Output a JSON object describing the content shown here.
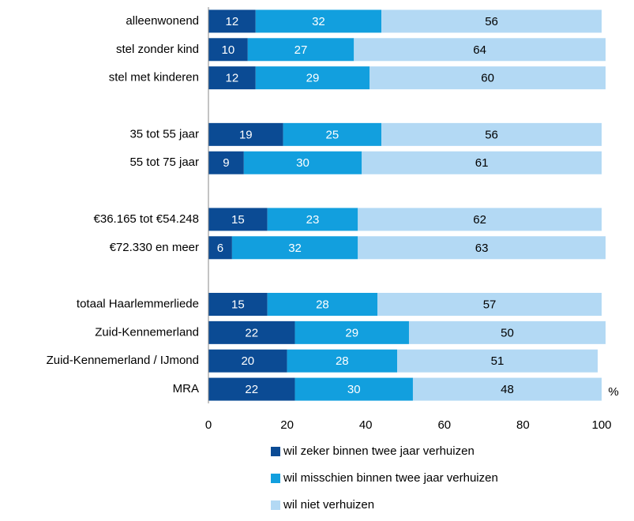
{
  "chart_data": {
    "type": "stacked-bar-horizontal",
    "categories": [
      "alleenwonend",
      "stel zonder kind",
      "stel met kinderen",
      null,
      "35 tot 55 jaar",
      "55 tot 75 jaar",
      null,
      "€36.165 tot €54.248",
      "€72.330 en meer",
      null,
      "totaal Haarlemmerliede",
      "Zuid-Kennemerland",
      "Zuid-Kennemerland / IJmond",
      "MRA"
    ],
    "series": [
      {
        "name": "wil zeker binnen twee jaar verhuizen",
        "color": "#0b4b94",
        "values": [
          12,
          10,
          12,
          null,
          19,
          9,
          null,
          15,
          6,
          null,
          15,
          22,
          20,
          22
        ]
      },
      {
        "name": "wil misschien binnen twee jaar verhuizen",
        "color": "#129fde",
        "values": [
          32,
          27,
          29,
          null,
          25,
          30,
          null,
          23,
          32,
          null,
          28,
          29,
          28,
          30
        ]
      },
      {
        "name": "wil niet verhuizen",
        "color": "#b3d9f4",
        "values": [
          56,
          64,
          60,
          null,
          56,
          61,
          null,
          62,
          63,
          null,
          57,
          50,
          51,
          48
        ]
      }
    ],
    "x_unit": "%",
    "xlim": [
      0,
      100
    ],
    "xticks": [
      0,
      20,
      40,
      60,
      80,
      100
    ]
  }
}
